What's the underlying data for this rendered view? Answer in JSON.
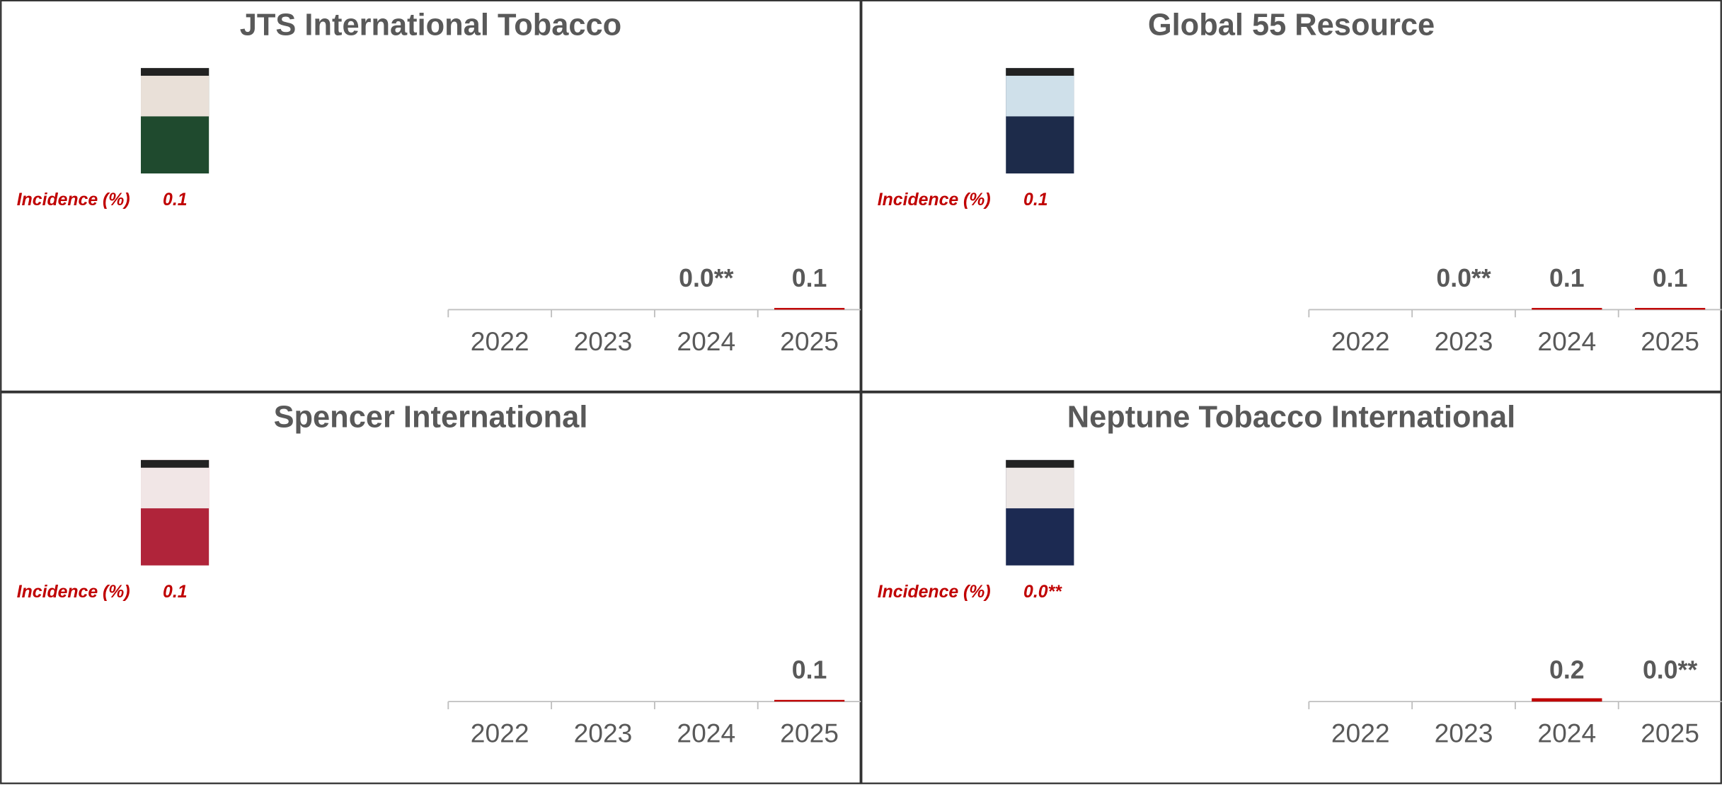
{
  "chart_data": [
    {
      "type": "bar",
      "title": "JTS International Tobacco",
      "annotation": "Incidence (%)",
      "incidence": "0.1",
      "categories": [
        "2022",
        "2023",
        "2024",
        "2025"
      ],
      "values": [
        null,
        null,
        0.0,
        0.1
      ],
      "value_labels": [
        null,
        null,
        "0.0**",
        "0.1"
      ],
      "color": "#c00000"
    },
    {
      "type": "bar",
      "title": "Global 55 Resource",
      "annotation": "Incidence (%)",
      "incidence": "0.1",
      "categories": [
        "2022",
        "2023",
        "2024",
        "2025"
      ],
      "values": [
        null,
        0.0,
        0.1,
        0.1
      ],
      "value_labels": [
        null,
        "0.0**",
        "0.1",
        "0.1"
      ],
      "color": "#c00000"
    },
    {
      "type": "bar",
      "title": "Spencer International",
      "annotation": "Incidence (%)",
      "incidence": "0.1",
      "categories": [
        "2022",
        "2023",
        "2024",
        "2025"
      ],
      "values": [
        null,
        null,
        null,
        0.1
      ],
      "value_labels": [
        null,
        null,
        null,
        "0.1"
      ],
      "color": "#c00000"
    },
    {
      "type": "bar",
      "title": "Neptune Tobacco International",
      "annotation": "Incidence (%)",
      "incidence": "0.0**",
      "categories": [
        "2022",
        "2023",
        "2024",
        "2025"
      ],
      "values": [
        null,
        null,
        0.2,
        0.0
      ],
      "value_labels": [
        null,
        null,
        "0.2",
        "0.0**"
      ],
      "color": "#c00000"
    }
  ]
}
